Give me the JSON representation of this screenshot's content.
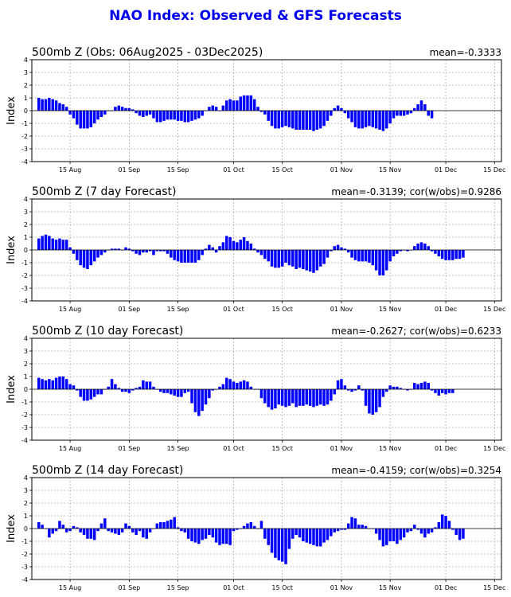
{
  "title": "NAO Index: Observed & GFS Forecasts",
  "colors": {
    "bar": "#0000ff",
    "title": "#0000ee",
    "grid": "#b0b0b0"
  },
  "chart_data": [
    {
      "type": "bar",
      "title": "500mb Z (Obs: 06Aug2025 - 03Dec2025)",
      "stat_label": "mean=-0.3333",
      "ylabel": "Index",
      "ylim": [
        -4,
        4
      ],
      "yticks": [
        "4",
        "3",
        "2",
        "1",
        "0",
        "-1",
        "-2",
        "-3",
        "-4"
      ],
      "xticks": [
        "15 Aug",
        "01 Sep",
        "15 Sep",
        "01 Oct",
        "15 Oct",
        "01 Nov",
        "15 Nov",
        "01 Dec",
        "15 Dec"
      ],
      "start_date": "2025-08-06",
      "values": [
        1.0,
        0.9,
        0.9,
        1.0,
        0.9,
        0.8,
        0.6,
        0.5,
        0.3,
        -0.3,
        -0.6,
        -1.1,
        -1.4,
        -1.4,
        -1.4,
        -1.3,
        -1.0,
        -0.7,
        -0.5,
        -0.3,
        0.0,
        0.0,
        0.3,
        0.4,
        0.3,
        0.2,
        0.2,
        0.1,
        -0.2,
        -0.4,
        -0.5,
        -0.4,
        -0.3,
        -0.6,
        -0.9,
        -0.9,
        -0.8,
        -0.7,
        -0.7,
        -0.7,
        -0.8,
        -0.8,
        -0.9,
        -0.9,
        -0.8,
        -0.7,
        -0.6,
        -0.4,
        0.0,
        0.3,
        0.4,
        0.3,
        0.0,
        0.4,
        0.8,
        0.9,
        0.8,
        0.8,
        1.1,
        1.2,
        1.2,
        1.2,
        0.9,
        0.3,
        -0.1,
        -0.3,
        -0.8,
        -1.2,
        -1.4,
        -1.4,
        -1.3,
        -1.2,
        -1.3,
        -1.4,
        -1.5,
        -1.5,
        -1.5,
        -1.5,
        -1.5,
        -1.6,
        -1.5,
        -1.4,
        -1.2,
        -0.8,
        -0.4,
        0.2,
        0.4,
        0.2,
        -0.2,
        -0.6,
        -0.9,
        -1.3,
        -1.4,
        -1.4,
        -1.3,
        -1.2,
        -1.3,
        -1.4,
        -1.5,
        -1.6,
        -1.4,
        -1.0,
        -0.6,
        -0.4,
        -0.4,
        -0.4,
        -0.3,
        -0.2,
        0.2,
        0.5,
        0.8,
        0.5,
        -0.4,
        -0.6
      ]
    },
    {
      "type": "bar",
      "title": "500mb Z (7 day Forecast)",
      "stat_label": "mean=-0.3139; cor(w/obs)=0.9286",
      "ylabel": "Index",
      "ylim": [
        -4,
        4
      ],
      "yticks": [
        "4",
        "3",
        "2",
        "1",
        "0",
        "-1",
        "-2",
        "-3",
        "-4"
      ],
      "xticks": [
        "15 Aug",
        "01 Sep",
        "15 Sep",
        "01 Oct",
        "15 Oct",
        "01 Nov",
        "15 Nov",
        "01 Dec",
        "15 Dec"
      ],
      "start_date": "2025-08-06",
      "values": [
        0.9,
        1.1,
        1.2,
        1.1,
        0.9,
        0.8,
        0.9,
        0.8,
        0.8,
        0.2,
        -0.3,
        -0.8,
        -1.2,
        -1.4,
        -1.5,
        -1.2,
        -0.9,
        -0.6,
        -0.4,
        -0.2,
        0.0,
        0.1,
        0.1,
        0.1,
        0.0,
        0.2,
        0.1,
        -0.1,
        -0.3,
        -0.4,
        -0.2,
        -0.2,
        -0.1,
        -0.4,
        -0.1,
        -0.1,
        -0.1,
        -0.3,
        -0.6,
        -0.8,
        -0.9,
        -1.0,
        -1.0,
        -1.0,
        -1.0,
        -1.0,
        -0.8,
        -0.4,
        0.1,
        0.4,
        0.2,
        -0.2,
        0.3,
        0.6,
        1.1,
        1.0,
        0.7,
        0.6,
        0.8,
        1.0,
        0.7,
        0.5,
        0.1,
        -0.2,
        -0.4,
        -0.7,
        -0.9,
        -1.3,
        -1.4,
        -1.4,
        -1.3,
        -1.0,
        -1.2,
        -1.3,
        -1.5,
        -1.4,
        -1.5,
        -1.6,
        -1.7,
        -1.8,
        -1.6,
        -1.3,
        -1.1,
        -0.6,
        -0.1,
        0.3,
        0.4,
        0.2,
        0.1,
        -0.2,
        -0.6,
        -0.8,
        -0.9,
        -0.9,
        -0.9,
        -1.0,
        -1.2,
        -1.6,
        -2.0,
        -2.0,
        -1.6,
        -0.9,
        -0.5,
        -0.3,
        -0.1,
        0.0,
        -0.1,
        0.0,
        0.3,
        0.5,
        0.6,
        0.5,
        0.3,
        -0.1,
        -0.3,
        -0.5,
        -0.7,
        -0.8,
        -0.8,
        -0.8,
        -0.7,
        -0.7,
        -0.6
      ]
    },
    {
      "type": "bar",
      "title": "500mb Z (10 day Forecast)",
      "stat_label": "mean=-0.2627; cor(w/obs)=0.6233",
      "ylabel": "Index",
      "ylim": [
        -4,
        4
      ],
      "yticks": [
        "4",
        "3",
        "2",
        "1",
        "0",
        "-1",
        "-2",
        "-3",
        "-4"
      ],
      "xticks": [
        "15 Aug",
        "01 Sep",
        "15 Sep",
        "01 Oct",
        "15 Oct",
        "01 Nov",
        "15 Nov",
        "01 Dec",
        "15 Dec"
      ],
      "start_date": "2025-08-06",
      "values": [
        0.9,
        0.8,
        0.7,
        0.8,
        0.7,
        0.9,
        1.0,
        1.0,
        0.8,
        0.4,
        0.3,
        -0.1,
        -0.6,
        -0.9,
        -0.9,
        -0.8,
        -0.6,
        -0.4,
        -0.4,
        0.0,
        0.2,
        0.8,
        0.4,
        0.1,
        -0.2,
        -0.2,
        -0.3,
        -0.1,
        0.1,
        0.2,
        0.7,
        0.6,
        0.6,
        0.2,
        0.0,
        -0.2,
        -0.3,
        -0.3,
        -0.4,
        -0.5,
        -0.6,
        -0.6,
        -0.3,
        -0.2,
        -1.1,
        -1.8,
        -2.1,
        -1.7,
        -1.2,
        -0.7,
        -0.1,
        0.0,
        0.2,
        0.4,
        0.9,
        0.8,
        0.6,
        0.5,
        0.6,
        0.7,
        0.6,
        0.2,
        0.0,
        0.0,
        -0.7,
        -1.1,
        -1.4,
        -1.6,
        -1.5,
        -1.2,
        -1.3,
        -1.4,
        -1.3,
        -1.1,
        -1.4,
        -1.3,
        -1.3,
        -1.2,
        -1.3,
        -1.4,
        -1.3,
        -1.2,
        -1.3,
        -1.2,
        -0.9,
        -0.4,
        0.7,
        0.8,
        0.3,
        -0.1,
        -0.2,
        -0.1,
        0.3,
        -0.1,
        -1.3,
        -1.9,
        -2.0,
        -1.8,
        -1.4,
        -0.6,
        -0.2,
        0.3,
        0.2,
        0.2,
        0.1,
        0.0,
        -0.1,
        0.0,
        0.5,
        0.4,
        0.5,
        0.6,
        0.5,
        -0.1,
        -0.3,
        -0.5,
        -0.3,
        -0.4,
        -0.3,
        -0.3
      ]
    },
    {
      "type": "bar",
      "title": "500mb Z (14 day Forecast)",
      "stat_label": "mean=-0.4159; cor(w/obs)=0.3254",
      "ylabel": "Index",
      "ylim": [
        -4,
        4
      ],
      "yticks": [
        "4",
        "3",
        "2",
        "1",
        "0",
        "-1",
        "-2",
        "-3",
        "-4"
      ],
      "xticks": [
        "15 Aug",
        "01 Sep",
        "15 Sep",
        "01 Oct",
        "15 Oct",
        "01 Nov",
        "15 Nov",
        "01 Dec",
        "15 Dec"
      ],
      "start_date": "2025-08-06",
      "values": [
        0.5,
        0.3,
        0.0,
        -0.7,
        -0.4,
        -0.2,
        0.6,
        0.3,
        -0.3,
        -0.2,
        0.2,
        0.1,
        -0.3,
        -0.5,
        -0.8,
        -0.8,
        -0.9,
        -0.2,
        0.4,
        0.8,
        -0.2,
        -0.3,
        -0.4,
        -0.5,
        -0.3,
        0.4,
        0.2,
        -0.3,
        -0.5,
        -0.2,
        -0.7,
        -0.8,
        -0.3,
        0.0,
        0.4,
        0.5,
        0.5,
        0.6,
        0.7,
        0.9,
        0.1,
        -0.2,
        -0.3,
        -0.8,
        -1.0,
        -1.1,
        -1.2,
        -0.9,
        -0.8,
        -0.5,
        -0.7,
        -1.1,
        -1.3,
        -1.2,
        -1.2,
        -1.3,
        -0.2,
        -0.1,
        0.0,
        0.2,
        0.4,
        0.5,
        0.2,
        0.0,
        0.6,
        -0.8,
        -1.3,
        -1.9,
        -2.3,
        -2.5,
        -2.6,
        -2.8,
        -1.6,
        -0.8,
        -0.5,
        -0.7,
        -1.0,
        -1.1,
        -1.2,
        -1.3,
        -1.4,
        -1.4,
        -1.1,
        -0.9,
        -0.6,
        -0.3,
        -0.2,
        -0.1,
        -0.1,
        0.4,
        0.9,
        0.8,
        0.3,
        0.3,
        0.2,
        0.0,
        0.0,
        -0.4,
        -0.9,
        -1.4,
        -1.3,
        -1.0,
        -1.0,
        -1.2,
        -0.9,
        -0.7,
        -0.3,
        -0.2,
        0.3,
        -0.1,
        -0.4,
        -0.7,
        -0.4,
        -0.3,
        0.1,
        0.5,
        1.1,
        1.0,
        0.6,
        -0.1,
        -0.5,
        -0.9,
        -0.8
      ]
    }
  ]
}
